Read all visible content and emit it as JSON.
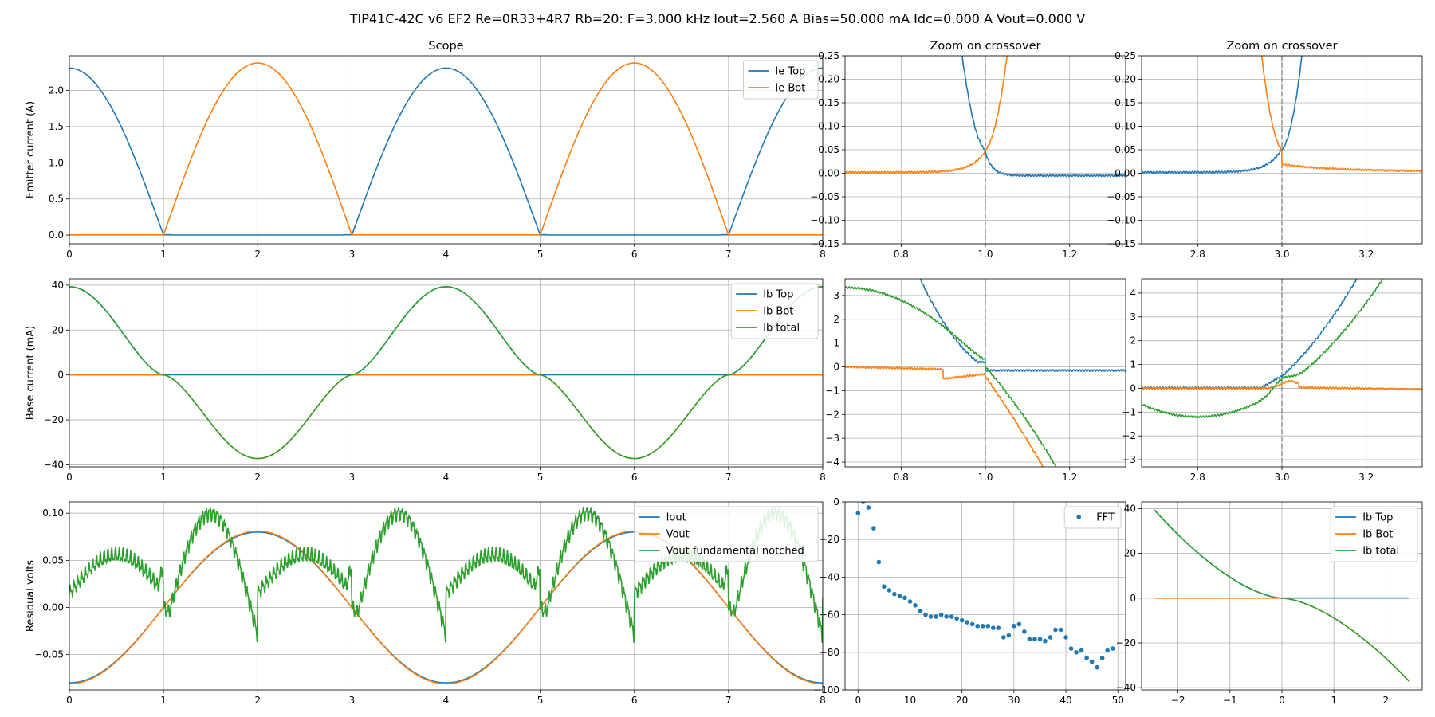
{
  "figure": {
    "suptitle": "TIP41C-42C v6 EF2 Re=0R33+4R7 Rb=20: F=3.000 kHz Iout=2.560 A Bias=50.000 mA Idc=0.000 A Vout=0.000 V"
  },
  "colors": {
    "blue": "#1f77b4",
    "orange": "#ff7f0e",
    "green": "#2ca02c",
    "grid": "#b0b0b0",
    "marker_line": "#808080"
  },
  "chart_data": [
    {
      "id": "scope",
      "type": "line",
      "title": "Scope",
      "xlabel": "",
      "ylabel": "Emitter current (A)",
      "xlim": [
        0,
        8
      ],
      "ylim": [
        -0.12,
        2.48
      ],
      "xticks": [
        "0",
        "1",
        "2",
        "3",
        "4",
        "5",
        "6",
        "7",
        "8"
      ],
      "yticks": [
        "0.0",
        "0.5",
        "1.0",
        "1.5",
        "2.0"
      ],
      "ytick_values": [
        0,
        0.5,
        1.0,
        1.5,
        2.0
      ],
      "grid": true,
      "legend": "top-right",
      "series": [
        {
          "name": "Ie Top",
          "color": "blue",
          "formula": "ie_top"
        },
        {
          "name": "Ie Bot",
          "color": "orange",
          "formula": "ie_bot"
        }
      ]
    },
    {
      "id": "zoom-ie-1",
      "type": "line",
      "title": "Zoom on crossover",
      "xlim": [
        0.667,
        1.333
      ],
      "ylim": [
        -0.15,
        0.25
      ],
      "xticks": [
        "0.8",
        "1.0",
        "1.2"
      ],
      "xtick_values": [
        0.8,
        1.0,
        1.2
      ],
      "yticks": [
        "−0.15",
        "−0.10",
        "−0.05",
        "0.00",
        "0.05",
        "0.10",
        "0.15",
        "0.20",
        "0.25"
      ],
      "ytick_values": [
        -0.15,
        -0.1,
        -0.05,
        0,
        0.05,
        0.1,
        0.15,
        0.2,
        0.25
      ],
      "grid": true,
      "vline": 1.0,
      "series": [
        {
          "name": "Ie Top",
          "color": "blue",
          "formula": "ie_top"
        },
        {
          "name": "Ie Bot",
          "color": "orange",
          "formula": "ie_bot"
        }
      ]
    },
    {
      "id": "zoom-ie-3",
      "type": "line",
      "title": "Zoom on crossover",
      "xlim": [
        2.667,
        3.333
      ],
      "ylim": [
        -0.15,
        0.25
      ],
      "xticks": [
        "2.8",
        "3.0",
        "3.2"
      ],
      "xtick_values": [
        2.8,
        3.0,
        3.2
      ],
      "yticks": [
        "−0.15",
        "−0.10",
        "−0.05",
        "0.00",
        "0.05",
        "0.10",
        "0.15",
        "0.20",
        "0.25"
      ],
      "ytick_values": [
        -0.15,
        -0.1,
        -0.05,
        0,
        0.05,
        0.1,
        0.15,
        0.2,
        0.25
      ],
      "grid": true,
      "vline": 3.0,
      "series": [
        {
          "name": "Ie Top",
          "color": "blue",
          "formula": "ie_top"
        },
        {
          "name": "Ie Bot",
          "color": "orange",
          "formula": "ie_bot"
        }
      ]
    },
    {
      "id": "base",
      "type": "line",
      "title": "",
      "ylabel": "Base current (mA)",
      "xlim": [
        0,
        8
      ],
      "ylim": [
        -40.9,
        42.8
      ],
      "xticks": [
        "0",
        "1",
        "2",
        "3",
        "4",
        "5",
        "6",
        "7",
        "8"
      ],
      "yticks": [
        "−40",
        "−20",
        "0",
        "20",
        "40"
      ],
      "ytick_values": [
        -40,
        -20,
        0,
        20,
        40
      ],
      "grid": true,
      "legend": "top-right",
      "series": [
        {
          "name": "Ib Top",
          "color": "blue",
          "formula": "ib_top"
        },
        {
          "name": "Ib Bot",
          "color": "orange",
          "formula": "ib_bot"
        },
        {
          "name": "Ib total",
          "color": "green",
          "formula": "ib_total"
        }
      ]
    },
    {
      "id": "zoom-ib-1",
      "type": "line",
      "title": "",
      "xlim": [
        0.667,
        1.333
      ],
      "ylim": [
        -4.2,
        3.7
      ],
      "xticks": [
        "0.8",
        "1.0",
        "1.2"
      ],
      "xtick_values": [
        0.8,
        1.0,
        1.2
      ],
      "yticks": [
        "−4",
        "−3",
        "−2",
        "−1",
        "0",
        "1",
        "2",
        "3"
      ],
      "ytick_values": [
        -4,
        -3,
        -2,
        -1,
        0,
        1,
        2,
        3
      ],
      "grid": true,
      "vline": 1.0,
      "series": [
        {
          "name": "Ib Top",
          "color": "blue",
          "formula": "ib_top"
        },
        {
          "name": "Ib Bot",
          "color": "orange",
          "formula": "ib_bot"
        },
        {
          "name": "Ib total",
          "color": "green",
          "formula": "ib_total"
        }
      ]
    },
    {
      "id": "zoom-ib-3",
      "type": "line",
      "title": "",
      "xlim": [
        2.667,
        3.333
      ],
      "ylim": [
        -3.3,
        4.6
      ],
      "xticks": [
        "2.8",
        "3.0",
        "3.2"
      ],
      "xtick_values": [
        2.8,
        3.0,
        3.2
      ],
      "yticks": [
        "−3",
        "−2",
        "−1",
        "0",
        "1",
        "2",
        "3",
        "4"
      ],
      "ytick_values": [
        -3,
        -2,
        -1,
        0,
        1,
        2,
        3,
        4
      ],
      "grid": true,
      "vline": 3.0,
      "series": [
        {
          "name": "Ib Top",
          "color": "blue",
          "formula": "ib_top"
        },
        {
          "name": "Ib Bot",
          "color": "orange",
          "formula": "ib_bot"
        },
        {
          "name": "Ib total",
          "color": "green",
          "formula": "ib_total"
        }
      ]
    },
    {
      "id": "residual",
      "type": "line",
      "title": "",
      "ylabel": "Residual volts",
      "xlim": [
        0,
        8
      ],
      "ylim": [
        -0.0875,
        0.112
      ],
      "xticks": [
        "0",
        "1",
        "2",
        "3",
        "4",
        "5",
        "6",
        "7",
        "8"
      ],
      "yticks": [
        "−0.05",
        "0.00",
        "0.05",
        "0.10"
      ],
      "ytick_values": [
        -0.05,
        0,
        0.05,
        0.1
      ],
      "grid": true,
      "legend": "top-right",
      "series": [
        {
          "name": "Iout",
          "color": "blue",
          "formula": "iout"
        },
        {
          "name": "Vout",
          "color": "orange",
          "formula": "vout"
        },
        {
          "name": "Vout fundamental notched",
          "color": "green",
          "formula": "notched"
        }
      ]
    },
    {
      "id": "fft",
      "type": "scatter",
      "title": "",
      "xlim": [
        -2.5,
        51.5
      ],
      "ylim": [
        -100,
        0
      ],
      "xticks": [
        "0",
        "10",
        "20",
        "30",
        "40",
        "50"
      ],
      "xtick_values": [
        0,
        10,
        20,
        30,
        40,
        50
      ],
      "yticks": [
        "−100",
        "−80",
        "−60",
        "−40",
        "−20",
        "0"
      ],
      "ytick_values": [
        -100,
        -80,
        -60,
        -40,
        -20,
        0
      ],
      "grid": true,
      "legend": "top-right",
      "series": [
        {
          "name": "FFT",
          "color": "blue",
          "x": [
            0,
            1,
            2,
            3,
            4,
            5,
            6,
            7,
            8,
            9,
            10,
            11,
            12,
            13,
            14,
            15,
            16,
            17,
            18,
            19,
            20,
            21,
            22,
            23,
            24,
            25,
            26,
            27,
            28,
            29,
            30,
            31,
            32,
            33,
            34,
            35,
            36,
            37,
            38,
            39,
            40,
            41,
            42,
            43,
            44,
            45,
            46,
            47,
            48,
            49
          ],
          "y": [
            -6,
            0,
            -3,
            -14,
            -32,
            -45,
            -47,
            -49,
            -50,
            -51,
            -53,
            -55,
            -58,
            -60,
            -61,
            -61,
            -60,
            -61,
            -61,
            -62,
            -63,
            -64,
            -65,
            -66,
            -66,
            -66,
            -67,
            -67,
            -72,
            -71,
            -66,
            -65,
            -69,
            -73,
            -73,
            -73,
            -74,
            -72,
            -68,
            -68,
            -72,
            -78,
            -80,
            -79,
            -83,
            -85,
            -88,
            -83,
            -79,
            -78
          ]
        }
      ]
    },
    {
      "id": "ib-vs-iout",
      "type": "line",
      "title": "",
      "xlim": [
        -2.7,
        2.7
      ],
      "ylim": [
        -41,
        43
      ],
      "xticks": [
        "−2",
        "−1",
        "0",
        "1",
        "2"
      ],
      "xtick_values": [
        -2,
        -1,
        0,
        1,
        2
      ],
      "yticks": [
        "−40",
        "−20",
        "0",
        "20",
        "40"
      ],
      "ytick_values": [
        -40,
        -20,
        0,
        20,
        40
      ],
      "grid": true,
      "legend": "top-right",
      "series": [
        {
          "name": "Ib Top",
          "color": "blue",
          "formula": "xy_top"
        },
        {
          "name": "Ib Bot",
          "color": "orange",
          "formula": "xy_bot"
        },
        {
          "name": "Ib total",
          "color": "green",
          "formula": "xy_total"
        }
      ]
    }
  ]
}
